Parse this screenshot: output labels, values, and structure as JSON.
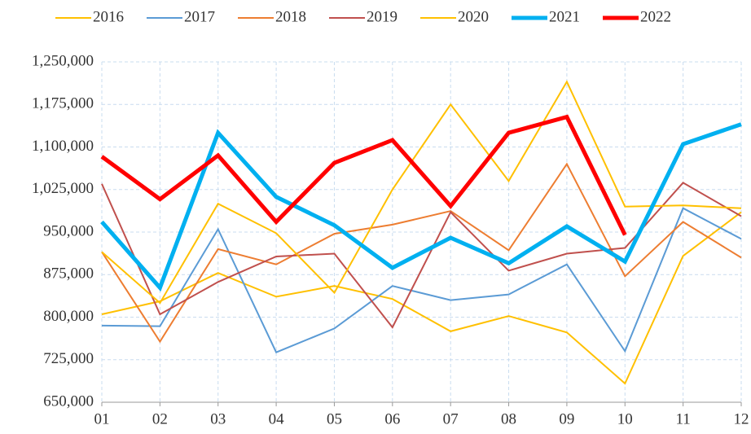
{
  "chart_data": {
    "type": "line",
    "categories": [
      "01",
      "02",
      "03",
      "04",
      "05",
      "06",
      "07",
      "08",
      "09",
      "10",
      "11",
      "12"
    ],
    "ylim": [
      650000,
      1250000
    ],
    "yticks": [
      {
        "value": 650000,
        "label": "650,000"
      },
      {
        "value": 725000,
        "label": "725,000"
      },
      {
        "value": 800000,
        "label": "800,000"
      },
      {
        "value": 875000,
        "label": "875,000"
      },
      {
        "value": 950000,
        "label": "950,000"
      },
      {
        "value": 1025000,
        "label": "1,025,000"
      },
      {
        "value": 1100000,
        "label": "1,100,000"
      },
      {
        "value": 1175000,
        "label": "1,175,000"
      },
      {
        "value": 1250000,
        "label": "1,250,000"
      }
    ],
    "grid": true,
    "legend": "top",
    "series": [
      {
        "name": "2016",
        "color": "#ffc000",
        "width": 2,
        "values": [
          805000,
          828000,
          878000,
          836000,
          855000,
          832000,
          775000,
          802000,
          773000,
          683000,
          908000,
          985000
        ]
      },
      {
        "name": "2017",
        "color": "#5b9bd5",
        "width": 2,
        "values": [
          785000,
          784000,
          955000,
          738000,
          780000,
          855000,
          830000,
          840000,
          893000,
          740000,
          992000,
          938000
        ]
      },
      {
        "name": "2018",
        "color": "#ed7d31",
        "width": 2,
        "values": [
          915000,
          757000,
          920000,
          893000,
          947000,
          963000,
          987000,
          918000,
          1070000,
          872000,
          968000,
          905000
        ]
      },
      {
        "name": "2019",
        "color": "#c0504d",
        "width": 2,
        "values": [
          1035000,
          805000,
          862000,
          907000,
          912000,
          782000,
          985000,
          882000,
          912000,
          922000,
          1037000,
          978000
        ]
      },
      {
        "name": "2020",
        "color": "#ffc000",
        "width": 2,
        "values": [
          915000,
          825000,
          1000000,
          948000,
          843000,
          1025000,
          1175000,
          1040000,
          1215000,
          995000,
          997000,
          992000
        ]
      },
      {
        "name": "2021",
        "color": "#00b0f0",
        "width": 5,
        "values": [
          968000,
          852000,
          1125000,
          1012000,
          962000,
          887000,
          940000,
          895000,
          960000,
          898000,
          1105000,
          1140000
        ]
      },
      {
        "name": "2022",
        "color": "#ff0000",
        "width": 5,
        "values": [
          1083000,
          1008000,
          1085000,
          968000,
          1072000,
          1112000,
          996000,
          1125000,
          1153000,
          945000,
          null,
          null
        ]
      }
    ]
  }
}
